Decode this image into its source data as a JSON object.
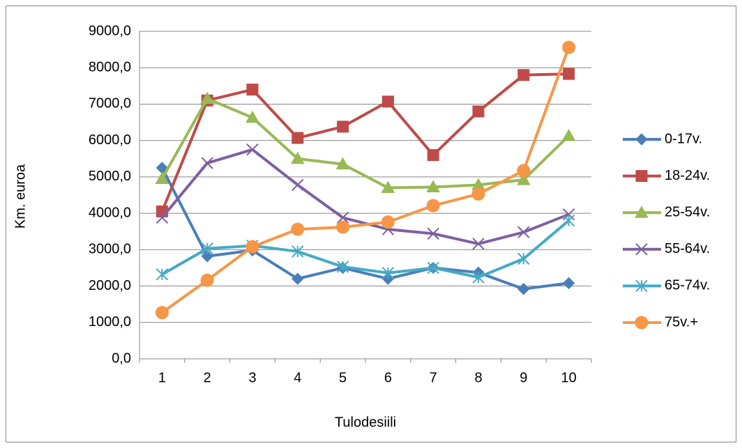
{
  "chart_data": {
    "type": "line",
    "x_label": "Tulodesiili",
    "y_label": "Km. euroa",
    "categories": [
      "1",
      "2",
      "3",
      "4",
      "5",
      "6",
      "7",
      "8",
      "9",
      "10"
    ],
    "ylim": [
      0,
      9000
    ],
    "yticks": [
      {
        "value": 0,
        "label": "0,0"
      },
      {
        "value": 1000,
        "label": "1000,0"
      },
      {
        "value": 2000,
        "label": "2000,0"
      },
      {
        "value": 3000,
        "label": "3000,0"
      },
      {
        "value": 4000,
        "label": "4000,0"
      },
      {
        "value": 5000,
        "label": "5000,0"
      },
      {
        "value": 6000,
        "label": "6000,0"
      },
      {
        "value": 7000,
        "label": "7000,0"
      },
      {
        "value": 8000,
        "label": "8000,0"
      },
      {
        "value": 9000,
        "label": "9000,0"
      }
    ],
    "grid": true,
    "legend": "right",
    "series": [
      {
        "name": "0-17v.",
        "color": "#4a7ebb",
        "marker": "diamond",
        "values": [
          5250,
          2820,
          2980,
          2200,
          2500,
          2200,
          2500,
          2370,
          1920,
          2080
        ]
      },
      {
        "name": "18-24v.",
        "color": "#be4b48",
        "marker": "square",
        "values": [
          4050,
          7100,
          7400,
          6070,
          6380,
          7070,
          5600,
          6800,
          7800,
          7830
        ]
      },
      {
        "name": "25-54v.",
        "color": "#98b954",
        "marker": "triangle",
        "values": [
          4950,
          7150,
          6630,
          5500,
          5350,
          4700,
          4720,
          4780,
          4920,
          6130
        ]
      },
      {
        "name": "55-64v.",
        "color": "#7d60a0",
        "marker": "x",
        "values": [
          3880,
          5380,
          5750,
          4780,
          3880,
          3560,
          3440,
          3160,
          3480,
          3970
        ]
      },
      {
        "name": "65-74v.",
        "color": "#46aac5",
        "marker": "star",
        "values": [
          2320,
          3030,
          3110,
          2950,
          2530,
          2360,
          2500,
          2240,
          2750,
          3800
        ]
      },
      {
        "name": "75v.+",
        "color": "#f79646",
        "marker": "circle",
        "values": [
          1270,
          2160,
          3080,
          3560,
          3620,
          3760,
          4210,
          4530,
          5170,
          8560
        ]
      }
    ]
  }
}
